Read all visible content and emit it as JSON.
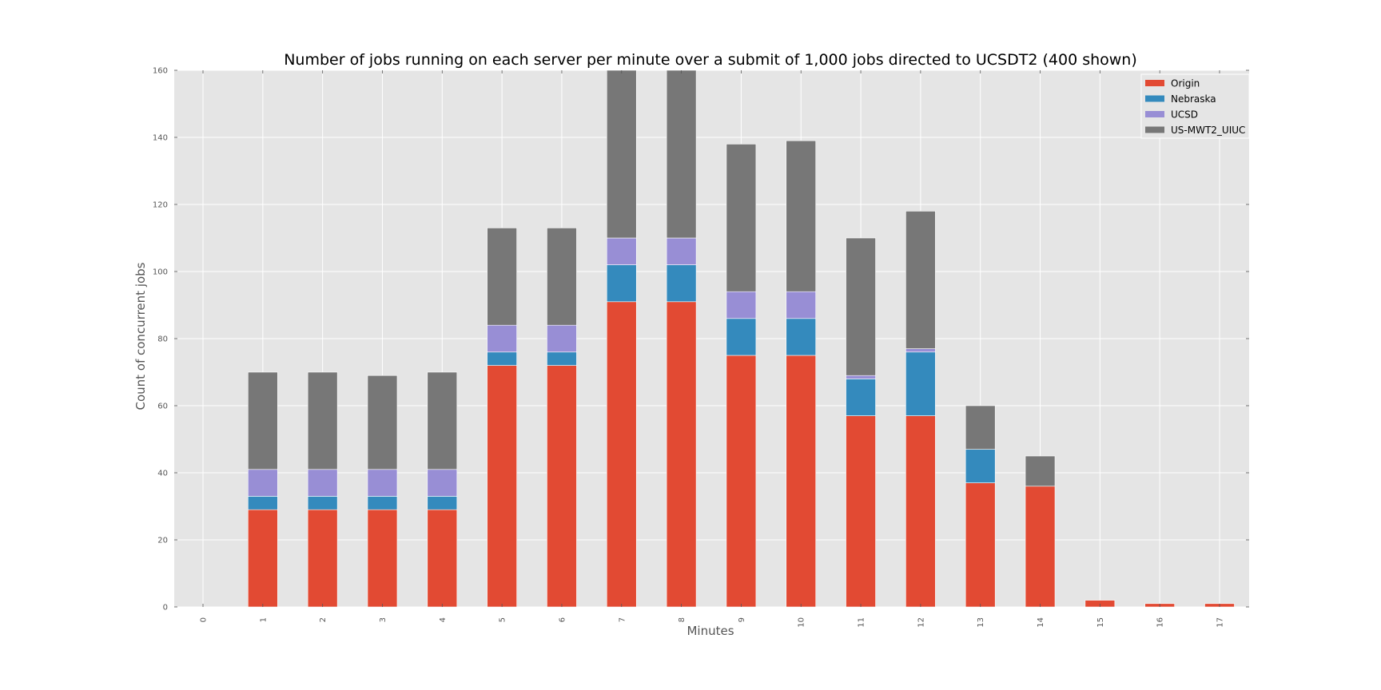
{
  "chart_data": {
    "type": "bar",
    "stacked": true,
    "title": "Number of jobs running on each server per minute over a submit of 1,000 jobs directed to UCSDT2 (400 shown)",
    "xlabel": "Minutes",
    "ylabel": "Count of concurrent jobs",
    "categories": [
      "0",
      "1",
      "2",
      "3",
      "4",
      "5",
      "6",
      "7",
      "8",
      "9",
      "10",
      "11",
      "12",
      "13",
      "14",
      "15",
      "16",
      "17"
    ],
    "ylim": [
      0,
      160
    ],
    "yticks": [
      0,
      20,
      40,
      60,
      80,
      100,
      120,
      140,
      160
    ],
    "grid": true,
    "legend_position": "top-right",
    "series": [
      {
        "name": "Origin",
        "color": "#E24A33",
        "values": [
          0,
          29,
          29,
          29,
          29,
          72,
          72,
          91,
          91,
          75,
          75,
          57,
          57,
          37,
          36,
          2,
          1,
          1
        ]
      },
      {
        "name": "Nebraska",
        "color": "#348ABD",
        "values": [
          0,
          4,
          4,
          4,
          4,
          4,
          4,
          11,
          11,
          11,
          11,
          11,
          19,
          10,
          0,
          0,
          0,
          0
        ]
      },
      {
        "name": "UCSD",
        "color": "#988ED5",
        "values": [
          0,
          8,
          8,
          8,
          8,
          8,
          8,
          8,
          8,
          8,
          8,
          1,
          1,
          0,
          0,
          0,
          0,
          0
        ]
      },
      {
        "name": "US-MWT2_UIUC",
        "color": "#777777",
        "values": [
          0,
          29,
          29,
          28,
          29,
          29,
          29,
          50,
          50,
          44,
          45,
          41,
          41,
          13,
          9,
          0,
          0,
          0
        ]
      }
    ]
  }
}
